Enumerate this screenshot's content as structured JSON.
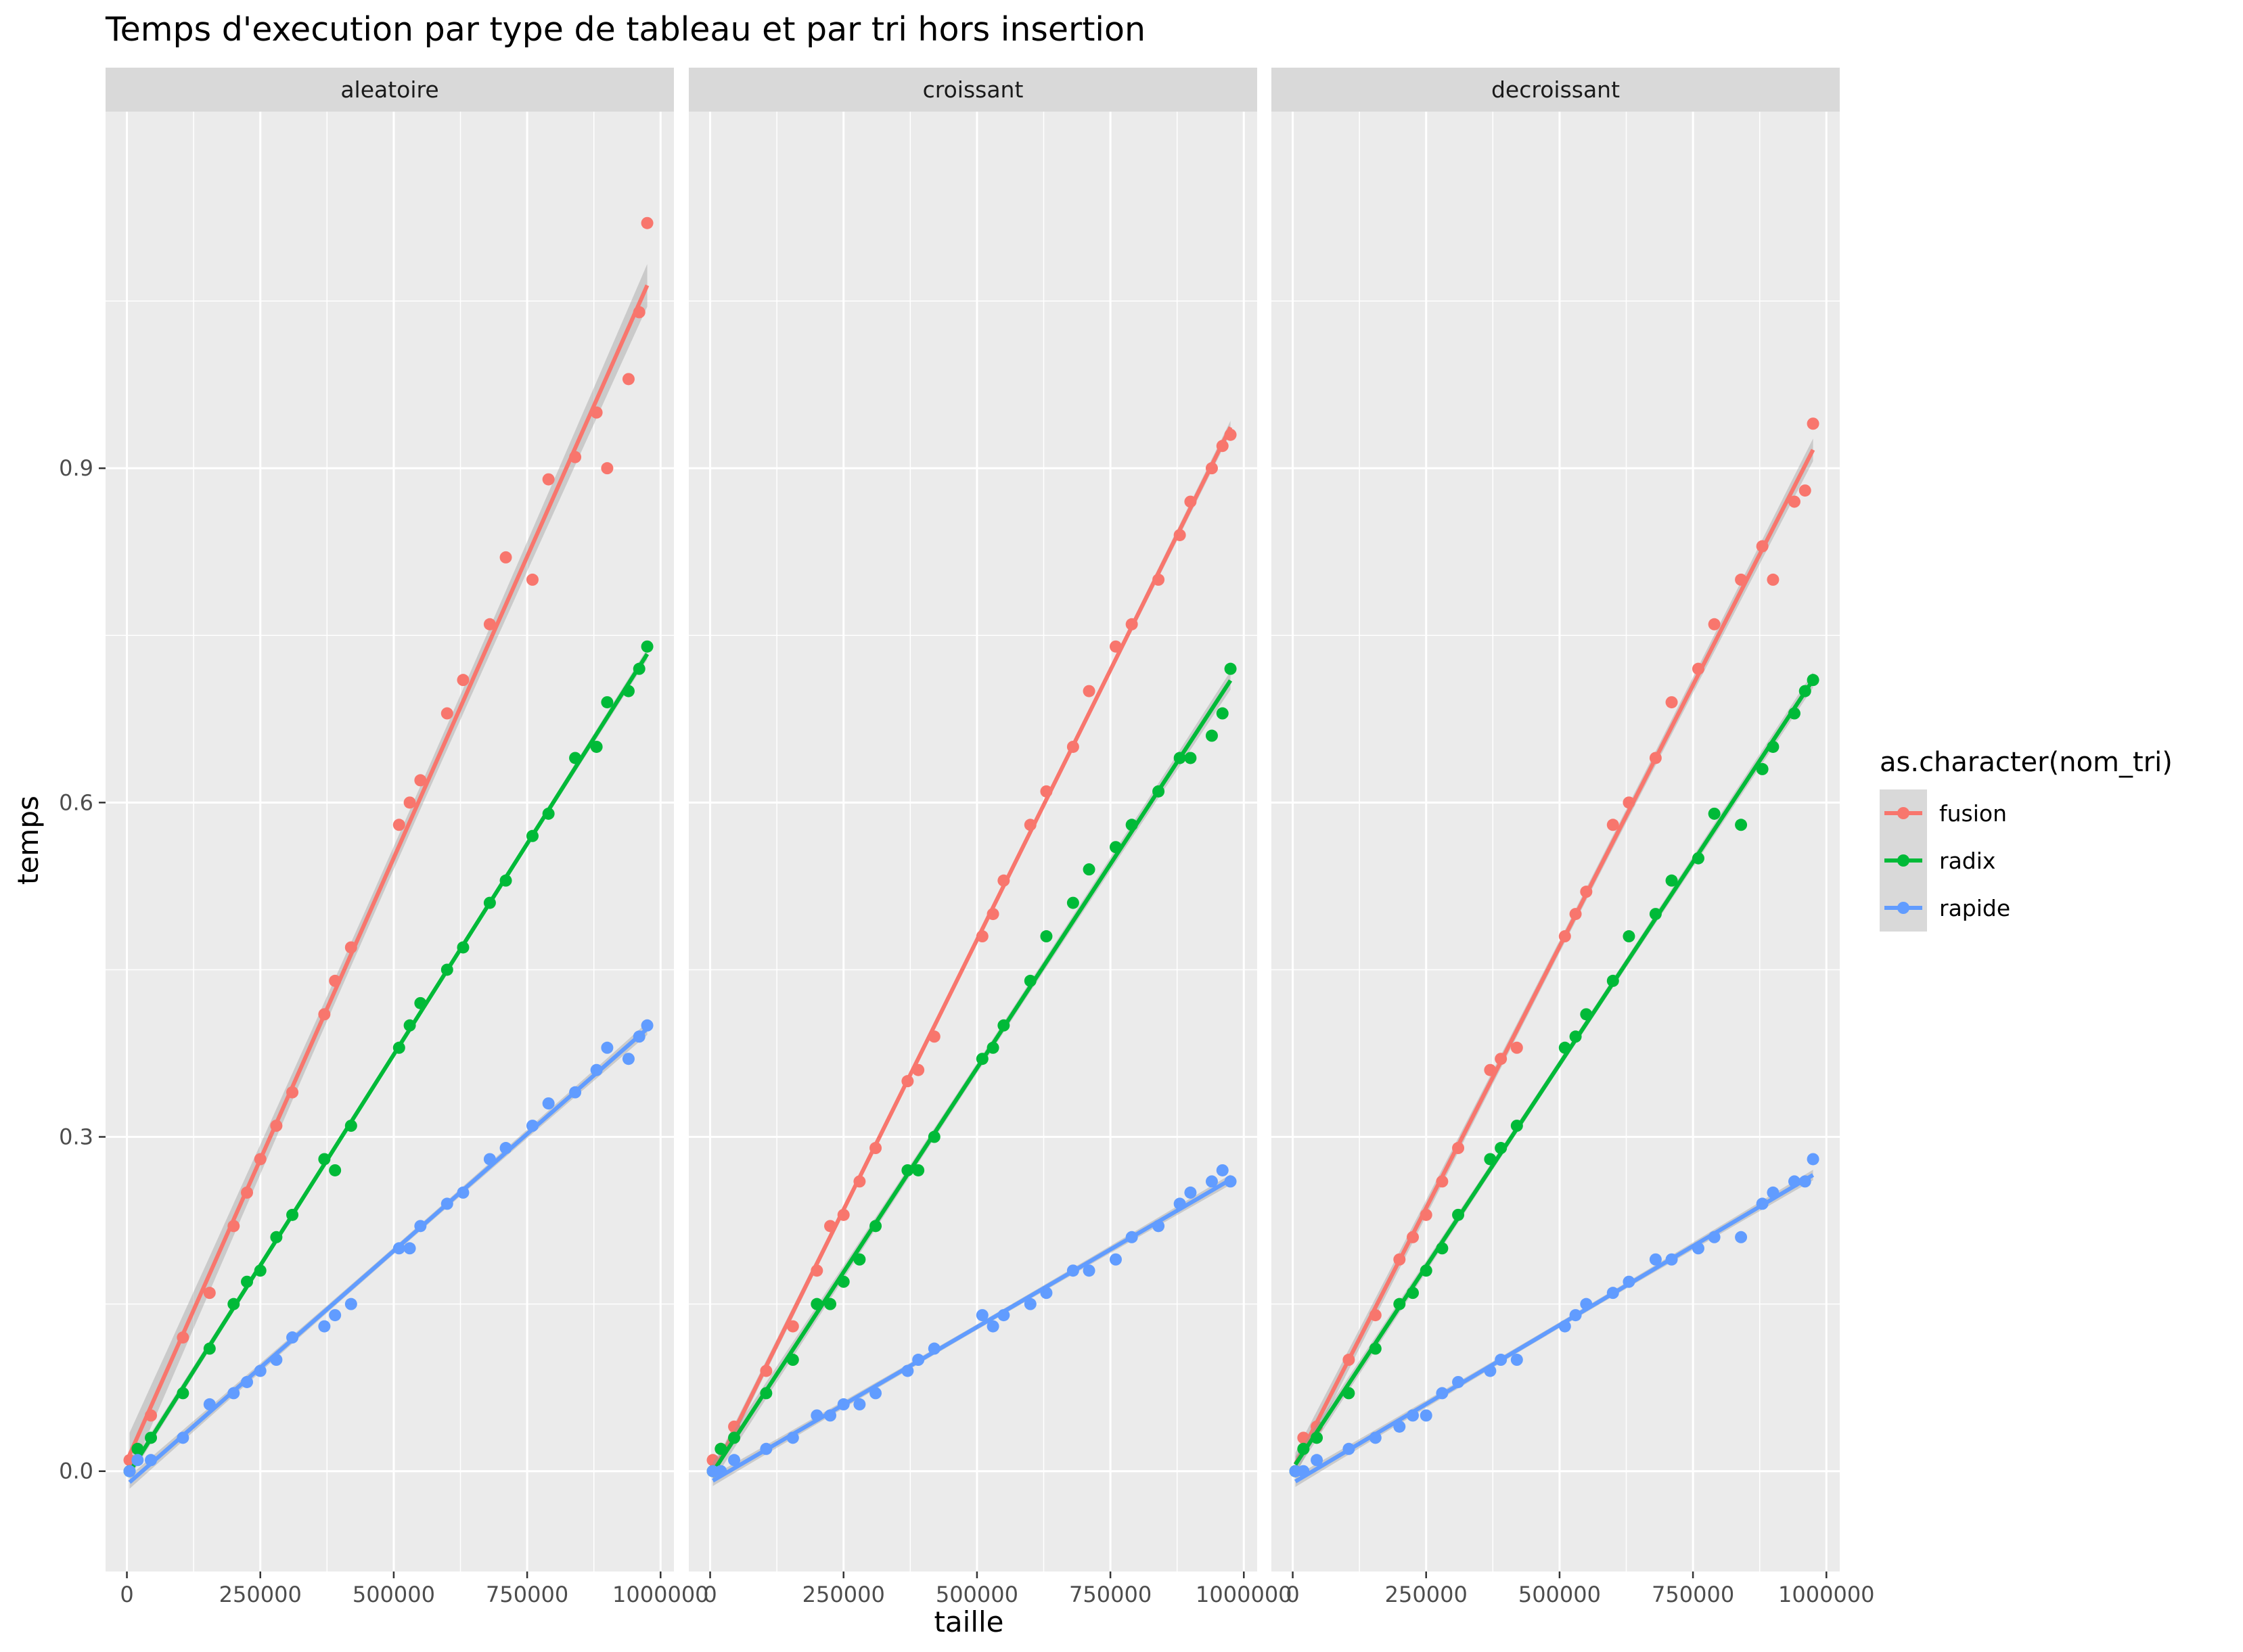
{
  "chart_data": {
    "type": "scatter",
    "title": "Temps d'execution par type de tableau et par tri hors insertion",
    "xlabel": "taille",
    "ylabel": "temps",
    "xlim": [
      -40000,
      1025000
    ],
    "ylim": [
      -0.09,
      1.22
    ],
    "x_ticks": [
      0,
      250000,
      500000,
      750000,
      1000000
    ],
    "x_tick_labels": [
      "0",
      "250000",
      "500000",
      "750000",
      "1000000"
    ],
    "y_ticks": [
      0.0,
      0.3,
      0.6,
      0.9
    ],
    "y_tick_labels": [
      "0.0",
      "0.3",
      "0.6",
      "0.9"
    ],
    "grid": true,
    "smooth": "linear fit with confidence band",
    "legend": {
      "title": "as.character(nom_tri)",
      "position": "right",
      "entries": [
        {
          "name": "fusion",
          "color": "#F8766D"
        },
        {
          "name": "radix",
          "color": "#00BA38"
        },
        {
          "name": "rapide",
          "color": "#619CFF"
        }
      ]
    },
    "x": [
      5000,
      20000,
      45000,
      105000,
      155000,
      200000,
      225000,
      250000,
      280000,
      310000,
      370000,
      390000,
      420000,
      510000,
      530000,
      550000,
      600000,
      630000,
      680000,
      710000,
      760000,
      790000,
      840000,
      880000,
      900000,
      940000,
      960000,
      975000
    ],
    "panels": [
      {
        "name": "aleatoire",
        "series": [
          {
            "name": "fusion",
            "values": [
              0.01,
              0.02,
              0.05,
              0.12,
              0.16,
              0.22,
              0.25,
              0.28,
              0.31,
              0.34,
              0.41,
              0.44,
              0.47,
              0.58,
              0.6,
              0.62,
              0.68,
              0.71,
              0.76,
              0.82,
              0.8,
              0.89,
              0.91,
              0.95,
              0.9,
              0.98,
              1.04,
              1.12
            ]
          },
          {
            "name": "radix",
            "values": [
              0.0,
              0.02,
              0.03,
              0.07,
              0.11,
              0.15,
              0.17,
              0.18,
              0.21,
              0.23,
              0.28,
              0.27,
              0.31,
              0.38,
              0.4,
              0.42,
              0.45,
              0.47,
              0.51,
              0.53,
              0.57,
              0.59,
              0.64,
              0.65,
              0.69,
              0.7,
              0.72,
              0.74
            ]
          },
          {
            "name": "rapide",
            "values": [
              0.0,
              0.01,
              0.01,
              0.03,
              0.06,
              0.07,
              0.08,
              0.09,
              0.1,
              0.12,
              0.13,
              0.14,
              0.15,
              0.2,
              0.2,
              0.22,
              0.24,
              0.25,
              0.28,
              0.29,
              0.31,
              0.33,
              0.34,
              0.36,
              0.38,
              0.37,
              0.39,
              0.4
            ]
          }
        ]
      },
      {
        "name": "croissant",
        "series": [
          {
            "name": "fusion",
            "values": [
              0.01,
              0.02,
              0.04,
              0.09,
              0.13,
              0.18,
              0.22,
              0.23,
              0.26,
              0.29,
              0.35,
              0.36,
              0.39,
              0.48,
              0.5,
              0.53,
              0.58,
              0.61,
              0.65,
              0.7,
              0.74,
              0.76,
              0.8,
              0.84,
              0.87,
              0.9,
              0.92,
              0.93
            ]
          },
          {
            "name": "radix",
            "values": [
              0.0,
              0.02,
              0.03,
              0.07,
              0.1,
              0.15,
              0.15,
              0.17,
              0.19,
              0.22,
              0.27,
              0.27,
              0.3,
              0.37,
              0.38,
              0.4,
              0.44,
              0.48,
              0.51,
              0.54,
              0.56,
              0.58,
              0.61,
              0.64,
              0.64,
              0.66,
              0.68,
              0.72
            ]
          },
          {
            "name": "rapide",
            "values": [
              0.0,
              0.0,
              0.01,
              0.02,
              0.03,
              0.05,
              0.05,
              0.06,
              0.06,
              0.07,
              0.09,
              0.1,
              0.11,
              0.14,
              0.13,
              0.14,
              0.15,
              0.16,
              0.18,
              0.18,
              0.19,
              0.21,
              0.22,
              0.24,
              0.25,
              0.26,
              0.27,
              0.26
            ]
          }
        ]
      },
      {
        "name": "decroissant",
        "series": [
          {
            "name": "fusion",
            "values": [
              0.0,
              0.03,
              0.04,
              0.1,
              0.14,
              0.19,
              0.21,
              0.23,
              0.26,
              0.29,
              0.36,
              0.37,
              0.38,
              0.48,
              0.5,
              0.52,
              0.58,
              0.6,
              0.64,
              0.69,
              0.72,
              0.76,
              0.8,
              0.83,
              0.8,
              0.87,
              0.88,
              0.94
            ]
          },
          {
            "name": "radix",
            "values": [
              0.0,
              0.02,
              0.03,
              0.07,
              0.11,
              0.15,
              0.16,
              0.18,
              0.2,
              0.23,
              0.28,
              0.29,
              0.31,
              0.38,
              0.39,
              0.41,
              0.44,
              0.48,
              0.5,
              0.53,
              0.55,
              0.59,
              0.58,
              0.63,
              0.65,
              0.68,
              0.7,
              0.71
            ]
          },
          {
            "name": "rapide",
            "values": [
              0.0,
              0.0,
              0.01,
              0.02,
              0.03,
              0.04,
              0.05,
              0.05,
              0.07,
              0.08,
              0.09,
              0.1,
              0.1,
              0.13,
              0.14,
              0.15,
              0.16,
              0.17,
              0.19,
              0.19,
              0.2,
              0.21,
              0.21,
              0.24,
              0.25,
              0.26,
              0.26,
              0.28
            ]
          }
        ]
      }
    ]
  }
}
